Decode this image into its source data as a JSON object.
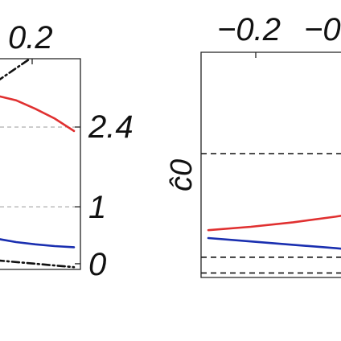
{
  "chart_data": [
    {
      "type": "line",
      "panel": "left",
      "top_tick_labels": [
        "0.2"
      ],
      "right_tick_labels": [
        "2.4",
        "1",
        "0"
      ],
      "right_axis": {
        "ticks": [
          2.4,
          1,
          0
        ],
        "ylim": [
          -0.1,
          3.6
        ],
        "grid": "dashed"
      },
      "series": [
        {
          "color": "#e03030",
          "style": "solid",
          "x": [
            0,
            0.25,
            0.5,
            0.75,
            1.0
          ],
          "y": [
            2.95,
            2.87,
            2.72,
            2.55,
            2.33
          ]
        },
        {
          "color": "#1a2fb0",
          "style": "solid",
          "x": [
            0,
            0.25,
            0.5,
            0.75,
            1.0
          ],
          "y": [
            0.44,
            0.38,
            0.34,
            0.31,
            0.29
          ]
        },
        {
          "color": "#111111",
          "style": "dash-dot",
          "x": [
            0,
            0.42
          ],
          "y": [
            3.2,
            3.59
          ]
        },
        {
          "color": "#111111",
          "style": "dash-dot",
          "x": [
            0,
            1.0
          ],
          "y": [
            0.06,
            -0.06
          ]
        }
      ]
    },
    {
      "type": "line",
      "panel": "right",
      "ylabel": "ĉ0",
      "top_tick_labels": [
        "−0.2",
        "−0"
      ],
      "reference_lines": {
        "style": "dashed",
        "color": "#111111",
        "y": [
          0.55,
          0.09,
          0.02
        ]
      },
      "ylim": [
        0,
        1
      ],
      "series": [
        {
          "color": "#e03030",
          "style": "solid",
          "x": [
            0,
            0.25,
            0.5,
            0.75,
            1.0
          ],
          "y": [
            0.21,
            0.225,
            0.245,
            0.27,
            0.3
          ]
        },
        {
          "color": "#1a2fb0",
          "style": "solid",
          "x": [
            0,
            0.25,
            0.5,
            0.75,
            1.0
          ],
          "y": [
            0.175,
            0.16,
            0.145,
            0.13,
            0.115
          ]
        }
      ]
    }
  ]
}
